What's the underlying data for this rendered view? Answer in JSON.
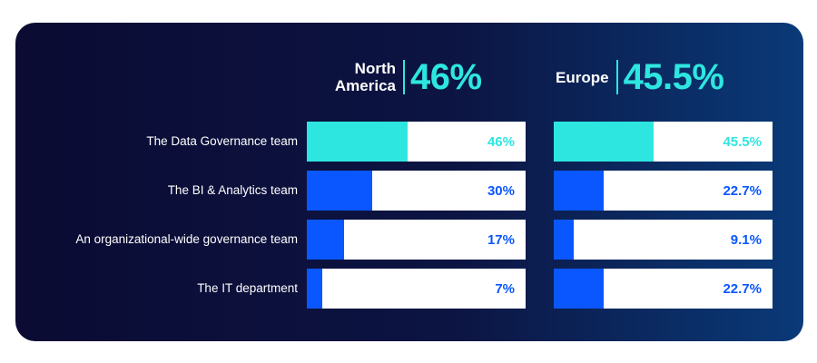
{
  "chart_data": {
    "type": "bar",
    "categories": [
      "The Data Governance team",
      "The BI & Analytics team",
      "An organizational-wide governance team",
      "The IT department"
    ],
    "series": [
      {
        "name": "North America",
        "headline": "46%",
        "values": [
          46,
          30,
          17,
          7
        ],
        "labels": [
          "46%",
          "30%",
          "17%",
          "7%"
        ]
      },
      {
        "name": "Europe",
        "headline": "45.5%",
        "values": [
          45.5,
          22.7,
          9.1,
          22.7
        ],
        "labels": [
          "45.5%",
          "22.7%",
          "9.1%",
          "22.7%"
        ]
      }
    ],
    "ylim": [
      0,
      100
    ],
    "colors": {
      "highlight": "#2ee6e0",
      "accent": "#0a57ff",
      "track": "#ffffff"
    }
  }
}
